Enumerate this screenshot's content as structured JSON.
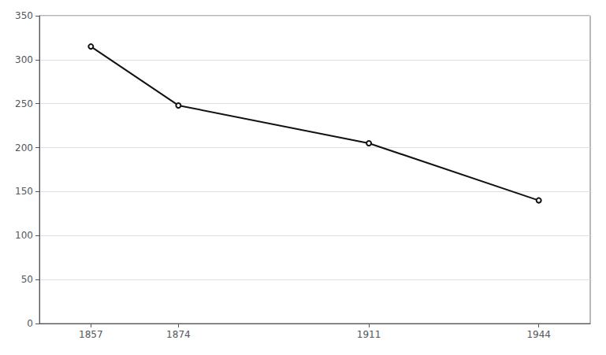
{
  "chart_data": {
    "type": "line",
    "x": [
      1857,
      1874,
      1911,
      1944
    ],
    "values": [
      315,
      248,
      205,
      140
    ],
    "color": "#111111",
    "xlim": [
      1847,
      1954
    ],
    "ylim": [
      0,
      350
    ],
    "xticks": [
      1857,
      1874,
      1911,
      1944
    ],
    "yticks": [
      0,
      50,
      100,
      150,
      200,
      250,
      300,
      350
    ],
    "grid": true
  }
}
